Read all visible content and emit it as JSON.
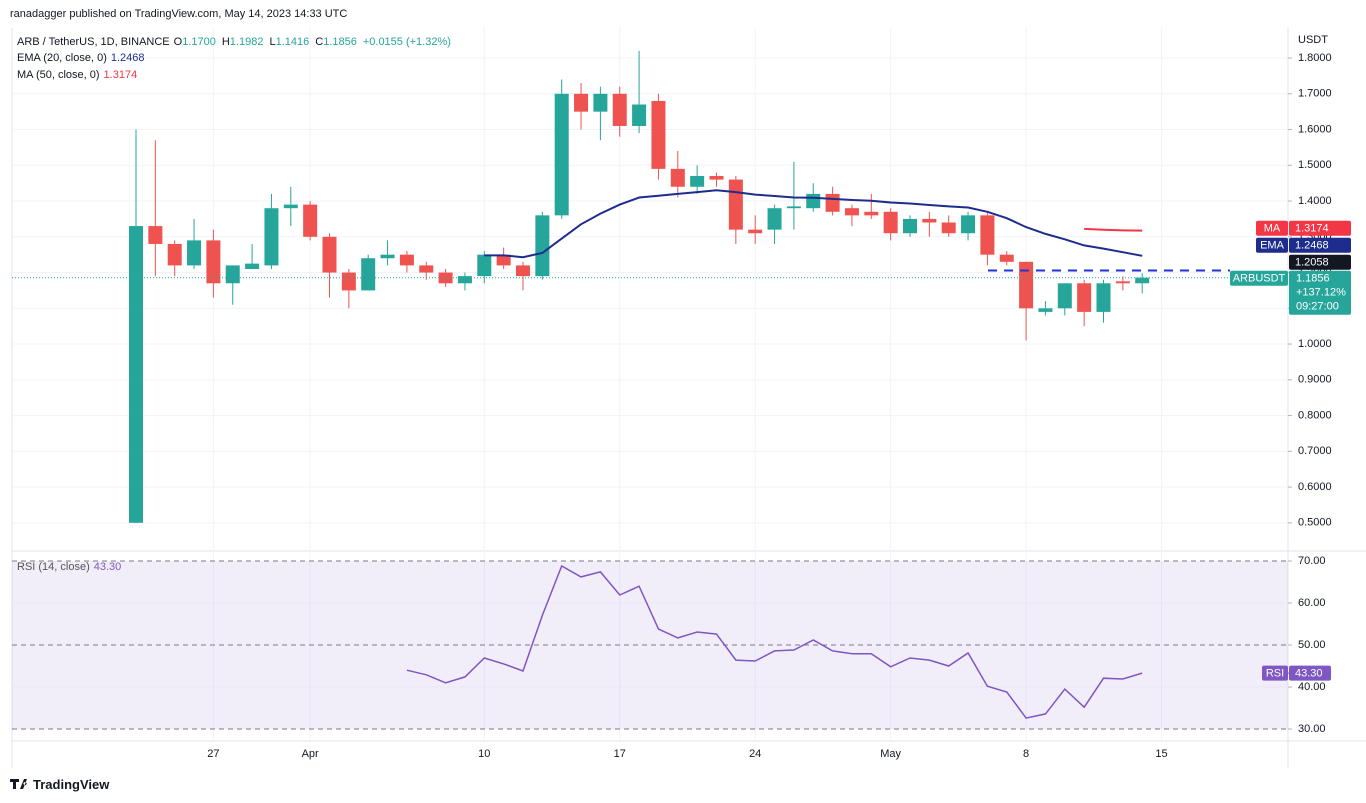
{
  "header": "ranadagger published on TradingView.com, May 14, 2023 14:33 UTC",
  "footer": "TradingView",
  "chart_data": {
    "type": "candlestick",
    "symbol": "ARB / TetherUS, 1D, BINANCE",
    "ohlc_legend": [
      {
        "key": "O",
        "value": "1.1700"
      },
      {
        "key": "H",
        "value": "1.1982"
      },
      {
        "key": "L",
        "value": "1.1416"
      },
      {
        "key": "C",
        "value": "1.1856"
      }
    ],
    "change": "+0.0155 (+1.32%)",
    "currency": "USDT",
    "categories": [
      null,
      null,
      null,
      null,
      "27",
      null,
      null,
      null,
      null,
      "Apr",
      null,
      null,
      null,
      null,
      null,
      null,
      null,
      null,
      "10",
      null,
      null,
      null,
      null,
      null,
      null,
      "17",
      null,
      null,
      null,
      null,
      null,
      null,
      "24",
      null,
      null,
      null,
      null,
      null,
      null,
      "May",
      null,
      null,
      null,
      null,
      null,
      null,
      "8",
      null,
      null,
      null,
      null,
      null,
      null,
      "15"
    ],
    "open": [
      0.5,
      1.33,
      1.28,
      1.22,
      1.29,
      1.17,
      1.21,
      1.22,
      1.38,
      1.39,
      1.3,
      1.2,
      1.15,
      1.24,
      1.25,
      1.22,
      1.2,
      1.17,
      1.19,
      1.25,
      1.22,
      1.19,
      1.36,
      1.7,
      1.65,
      1.7,
      1.61,
      1.68,
      1.49,
      1.44,
      1.47,
      1.46,
      1.32,
      1.32,
      1.38,
      1.38,
      1.42,
      1.38,
      1.37,
      1.37,
      1.31,
      1.35,
      1.34,
      1.31,
      1.36,
      1.25,
      1.23,
      1.09,
      1.1,
      1.17,
      1.09,
      1.1755,
      1.17,
      null
    ],
    "high": [
      1.6,
      1.57,
      1.29,
      1.35,
      1.32,
      1.22,
      1.28,
      1.42,
      1.44,
      1.4,
      1.31,
      1.21,
      1.25,
      1.29,
      1.26,
      1.23,
      1.21,
      1.2,
      1.26,
      1.27,
      1.23,
      1.37,
      1.74,
      1.73,
      1.72,
      1.72,
      1.82,
      1.7,
      1.54,
      1.5,
      1.48,
      1.47,
      1.36,
      1.39,
      1.51,
      1.45,
      1.44,
      1.39,
      1.42,
      1.38,
      1.36,
      1.37,
      1.36,
      1.37,
      1.37,
      1.26,
      1.23,
      1.12,
      1.17,
      1.18,
      1.18,
      1.19,
      1.1982,
      null
    ],
    "low": [
      0.5,
      1.19,
      1.19,
      1.21,
      1.13,
      1.11,
      1.21,
      1.21,
      1.33,
      1.29,
      1.13,
      1.1,
      1.15,
      1.22,
      1.2,
      1.18,
      1.16,
      1.15,
      1.17,
      1.21,
      1.15,
      1.18,
      1.35,
      1.6,
      1.57,
      1.58,
      1.59,
      1.46,
      1.41,
      1.42,
      1.44,
      1.28,
      1.28,
      1.28,
      1.32,
      1.37,
      1.36,
      1.33,
      1.35,
      1.29,
      1.3,
      1.3,
      1.3,
      1.29,
      1.22,
      1.22,
      1.01,
      1.08,
      1.08,
      1.05,
      1.06,
      1.15,
      1.1416,
      null
    ],
    "close": [
      1.33,
      1.28,
      1.22,
      1.29,
      1.17,
      1.22,
      1.225,
      1.38,
      1.39,
      1.3,
      1.2,
      1.15,
      1.24,
      1.25,
      1.22,
      1.2,
      1.17,
      1.19,
      1.25,
      1.22,
      1.19,
      1.36,
      1.7,
      1.65,
      1.7,
      1.61,
      1.67,
      1.49,
      1.44,
      1.47,
      1.46,
      1.32,
      1.31,
      1.38,
      1.385,
      1.42,
      1.37,
      1.36,
      1.36,
      1.31,
      1.35,
      1.34,
      1.31,
      1.36,
      1.25,
      1.23,
      1.1,
      1.1,
      1.17,
      1.09,
      1.17,
      1.17,
      1.1856,
      null
    ],
    "up_color": "#26a69a",
    "down_color": "#ef5350",
    "ylim": [
      0.424,
      1.884
    ],
    "yticks": [
      {
        "value": 0.5,
        "label": "0.5000"
      },
      {
        "value": 0.6,
        "label": "0.6000"
      },
      {
        "value": 0.7,
        "label": "0.7000"
      },
      {
        "value": 0.8,
        "label": "0.8000"
      },
      {
        "value": 0.9,
        "label": "0.9000"
      },
      {
        "value": 1.0,
        "label": "1.0000"
      },
      {
        "value": 1.1,
        "label": "1.1000"
      },
      {
        "value": 1.2,
        "label": "1.2000"
      },
      {
        "value": 1.3,
        "label": "1.3000"
      },
      {
        "value": 1.4,
        "label": "1.4000"
      },
      {
        "value": 1.5,
        "label": "1.5000"
      },
      {
        "value": 1.6,
        "label": "1.6000"
      },
      {
        "value": 1.7,
        "label": "1.7000"
      },
      {
        "value": 1.8,
        "label": "1.8000"
      }
    ],
    "grid": true,
    "series": [
      {
        "name": "EMA",
        "legend": "EMA (20, close, 0)",
        "color": "#1e2c8e",
        "values": [
          null,
          null,
          null,
          null,
          null,
          null,
          null,
          null,
          null,
          null,
          null,
          null,
          null,
          null,
          null,
          null,
          null,
          null,
          1.248,
          1.248,
          1.243,
          1.255,
          1.295,
          1.335,
          1.365,
          1.39,
          1.41,
          1.415,
          1.42,
          1.425,
          1.43,
          1.425,
          1.418,
          1.414,
          1.41,
          1.409,
          1.406,
          1.403,
          1.401,
          1.396,
          1.393,
          1.389,
          1.385,
          1.382,
          1.37,
          1.352,
          1.327,
          1.308,
          1.293,
          1.276,
          1.267,
          1.257,
          1.2468,
          null
        ]
      },
      {
        "name": "MA",
        "legend": "MA (50, close, 0)",
        "color": "#f23645",
        "values": [
          null,
          null,
          null,
          null,
          null,
          null,
          null,
          null,
          null,
          null,
          null,
          null,
          null,
          null,
          null,
          null,
          null,
          null,
          null,
          null,
          null,
          null,
          null,
          null,
          null,
          null,
          null,
          null,
          null,
          null,
          null,
          null,
          null,
          null,
          null,
          null,
          null,
          null,
          null,
          null,
          null,
          null,
          null,
          null,
          null,
          null,
          null,
          null,
          null,
          1.322,
          1.3195,
          1.318,
          1.3174,
          null
        ]
      }
    ],
    "last_price_tag": {
      "name": "ARBUSDT",
      "change": "+137.12%",
      "countdown": "09:27:00"
    },
    "hline": {
      "value": 1.2058,
      "color": "#2433d4"
    },
    "rsi": {
      "title": "RSI (14, close)",
      "name": "RSI",
      "color": "#7e57c2",
      "last_label": "43.30",
      "values": [
        null,
        null,
        null,
        null,
        null,
        null,
        null,
        null,
        null,
        null,
        null,
        null,
        null,
        null,
        44.0,
        42.9,
        41.0,
        42.4,
        46.9,
        45.5,
        43.8,
        57.1,
        68.8,
        66.2,
        67.4,
        61.9,
        64.0,
        53.8,
        51.7,
        53.1,
        52.6,
        46.4,
        46.2,
        48.6,
        48.8,
        51.2,
        48.6,
        47.9,
        47.9,
        44.8,
        46.9,
        46.4,
        45.0,
        48.1,
        40.2,
        38.8,
        32.6,
        33.6,
        39.5,
        35.2,
        42.1,
        41.9,
        43.3,
        null
      ],
      "ylim": [
        27.38,
        72.14
      ],
      "yticks": [
        {
          "value": 30,
          "label": "30.00"
        },
        {
          "value": 40,
          "label": "40.00"
        },
        {
          "value": 50,
          "label": "50.00"
        },
        {
          "value": 60,
          "label": "60.00"
        },
        {
          "value": 70,
          "label": "70.00"
        }
      ],
      "levels": [
        30,
        50,
        70
      ]
    }
  }
}
